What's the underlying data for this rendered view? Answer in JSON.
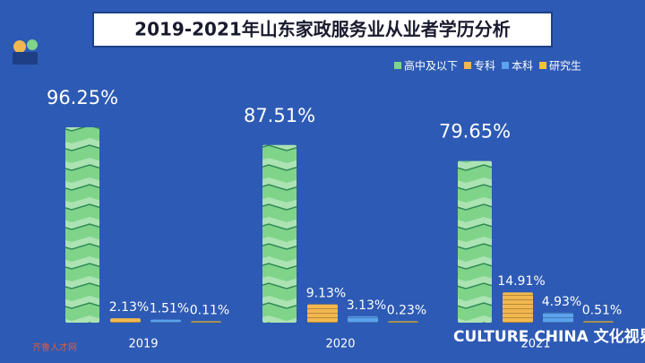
{
  "chart_data": {
    "type": "bar",
    "title": "2019-2021年山东家政服务业从业者学历分析",
    "categories": [
      "2019",
      "2020",
      "2021"
    ],
    "series": [
      {
        "name": "高中及以下",
        "color": "#7fd48a",
        "values": [
          96.25,
          87.51,
          79.65
        ],
        "value_labels": [
          "96.25%",
          "87.51%",
          "79.65%"
        ]
      },
      {
        "name": "专科",
        "color": "#f2b84f",
        "values": [
          2.13,
          9.13,
          14.91
        ],
        "value_labels": [
          "2.13%",
          "9.13%",
          "14.91%"
        ]
      },
      {
        "name": "本科",
        "color": "#5aa2ee",
        "values": [
          1.51,
          3.13,
          4.93
        ],
        "value_labels": [
          "1.51%",
          "3.13%",
          "4.93%"
        ]
      },
      {
        "name": "研究生",
        "color": "#f5c33b",
        "values": [
          0.11,
          0.23,
          0.51
        ],
        "value_labels": [
          "0.11%",
          "0.23%",
          "0.51%"
        ]
      }
    ],
    "legend": "top-right",
    "annotations": [
      "CULTURE CHINA 文化视界",
      "齐鲁人才网"
    ]
  }
}
